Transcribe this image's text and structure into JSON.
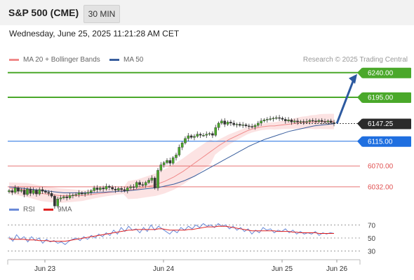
{
  "header": {
    "title": "S&P 500 (CME)",
    "timeframe": "30 MIN"
  },
  "datetime": "Wednesday, June 25, 2025 11:21:28 AM CET",
  "legend": {
    "items": [
      {
        "label": "MA 20 + Bollinger Bands",
        "color": "#f08a8a"
      },
      {
        "label": "MA 50",
        "color": "#3a5f9e"
      }
    ],
    "credit": "Research © 2025 Trading Central"
  },
  "rsi_legend": {
    "items": [
      {
        "label": "RSI",
        "color": "#6a8ad8"
      },
      {
        "label": "9MA",
        "color": "#e02020"
      }
    ]
  },
  "chart_data": {
    "type": "candlestick",
    "x_labels": [
      "Jun 23",
      "Jun 24",
      "Jun 25",
      "Jun 26"
    ],
    "price_axis_range": [
      6000,
      6255
    ],
    "current_price": 6147.25,
    "levels": [
      {
        "value": 6240.0,
        "label": "6240.00",
        "kind": "resistance",
        "color": "#4aa82a"
      },
      {
        "value": 6195.0,
        "label": "6195.00",
        "kind": "resistance",
        "color": "#4aa82a"
      },
      {
        "value": 6115.0,
        "label": "6115.00",
        "kind": "pivot",
        "color": "#1f6fe0"
      },
      {
        "value": 6070.0,
        "label": "6070.00",
        "kind": "support",
        "color": "#e05050"
      },
      {
        "value": 6032.0,
        "label": "6032.00",
        "kind": "support",
        "color": "#e05050"
      }
    ],
    "arrow": {
      "from": 6147.25,
      "to": 6240.0,
      "direction": "up",
      "color": "#2d5aa0"
    },
    "closes": [
      6025,
      6022,
      6030,
      6024,
      6026,
      6018,
      6028,
      6020,
      6026,
      6019,
      6027,
      6024,
      6022,
      6020,
      6015,
      5997,
      6010,
      6012,
      6014,
      6012,
      6016,
      6017,
      6018,
      6021,
      6019,
      6020,
      6022,
      6025,
      6030,
      6027,
      6030,
      6028,
      6033,
      6031,
      6028,
      6026,
      6029,
      6027,
      6025,
      6030,
      6032,
      6031,
      6040,
      6036,
      6035,
      6040,
      6044,
      6048,
      6030,
      6062,
      6072,
      6076,
      6080,
      6075,
      6085,
      6090,
      6104,
      6112,
      6120,
      6125,
      6122,
      6124,
      6128,
      6126,
      6126,
      6128,
      6129,
      6126,
      6140,
      6148,
      6152,
      6146,
      6150,
      6148,
      6145,
      6146,
      6144,
      6145,
      6143,
      6142,
      6141,
      6144,
      6148,
      6152,
      6154,
      6155,
      6156,
      6157,
      6158,
      6157,
      6155,
      6152,
      6154,
      6150,
      6152,
      6150,
      6151,
      6150,
      6151,
      6153,
      6152,
      6151,
      6153,
      6151,
      6150,
      6152,
      6149,
      6147.25
    ],
    "ma20": [
      6030,
      6029,
      6028,
      6027,
      6026,
      6024,
      6022,
      6020,
      6019,
      6018,
      6017,
      6016,
      6016,
      6016,
      6016,
      6016,
      6016,
      6017,
      6018,
      6019,
      6020,
      6021,
      6022,
      6023,
      6024,
      6025,
      6026,
      6027,
      6028,
      6030,
      6032,
      6034,
      6036,
      6039,
      6042,
      6046,
      6050,
      6055,
      6060,
      6066,
      6072,
      6078,
      6084,
      6090,
      6096,
      6102,
      6108,
      6113,
      6118,
      6122,
      6126,
      6130,
      6134,
      6137,
      6139,
      6141,
      6142,
      6143,
      6143,
      6144,
      6145,
      6146,
      6147,
      6148,
      6149,
      6149,
      6150,
      6150,
      6151,
      6151,
      6151,
      6151
    ],
    "ma50": [
      6032,
      6031,
      6030,
      6029,
      6028,
      6027,
      6026,
      6025,
      6024,
      6023,
      6022,
      6021,
      6021,
      6021,
      6021,
      6021,
      6021,
      6021,
      6022,
      6022,
      6023,
      6023,
      6024,
      6024,
      6025,
      6026,
      6027,
      6028,
      6029,
      6030,
      6031,
      6033,
      6035,
      6037,
      6040,
      6043,
      6047,
      6051,
      6056,
      6061,
      6066,
      6071,
      6076,
      6081,
      6086,
      6091,
      6096,
      6101,
      6106,
      6110,
      6114,
      6118,
      6121,
      6124,
      6127,
      6130,
      6133,
      6135,
      6137,
      6139,
      6141,
      6143,
      6144,
      6145,
      6146,
      6147
    ],
    "rsi_axis": {
      "range": [
        20,
        80
      ],
      "ticks": [
        "70",
        "50",
        "30"
      ]
    },
    "rsi": [
      52,
      45,
      55,
      48,
      52,
      44,
      52,
      46,
      50,
      42,
      48,
      44,
      46,
      42,
      44,
      40,
      45,
      48,
      50,
      46,
      52,
      48,
      54,
      50,
      56,
      52,
      58,
      54,
      62,
      56,
      66,
      60,
      68,
      62,
      64,
      58,
      66,
      60,
      70,
      62,
      68,
      64,
      60,
      56,
      62,
      58,
      66,
      62,
      68,
      64,
      70,
      66,
      72,
      68,
      70,
      66,
      72,
      68,
      70,
      64,
      68,
      62,
      66,
      60,
      64,
      56,
      62,
      58,
      66,
      62,
      64,
      58,
      62,
      60,
      64,
      58,
      62,
      56,
      60,
      56,
      58,
      56,
      60,
      54,
      58,
      56,
      58,
      57
    ],
    "rsi_ma": [
      49,
      48,
      48,
      48,
      48,
      47,
      47,
      47,
      46,
      46,
      46,
      45,
      45,
      45,
      45,
      45,
      46,
      47,
      48,
      49,
      50,
      51,
      52,
      53,
      54,
      55,
      56,
      57,
      58,
      59,
      60,
      61,
      62,
      62,
      63,
      63,
      63,
      63,
      63,
      63,
      64,
      64,
      63,
      62,
      62,
      62,
      62,
      62,
      63,
      63,
      64,
      65,
      66,
      67,
      67,
      67,
      68,
      68,
      68,
      67,
      66,
      65,
      64,
      63,
      62,
      61,
      61,
      61,
      61,
      61,
      61,
      61,
      60,
      60,
      60,
      60,
      59,
      59,
      58,
      58,
      58,
      58,
      58,
      57,
      57,
      57,
      57,
      57
    ],
    "rsi_last": 57
  }
}
